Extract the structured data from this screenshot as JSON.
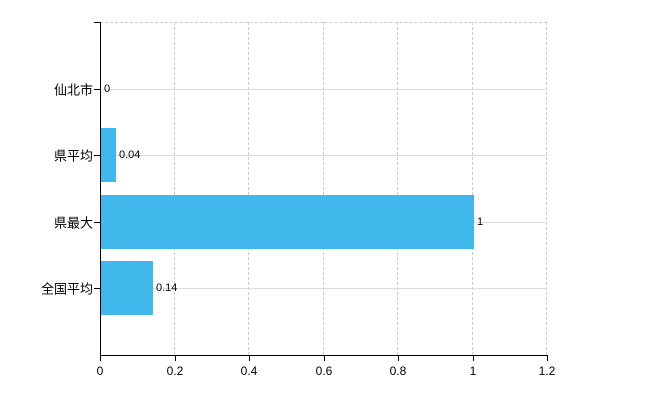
{
  "chart_data": {
    "type": "bar",
    "orientation": "horizontal",
    "title": "",
    "xlabel": "",
    "ylabel": "",
    "categories": [
      "仙北市",
      "県平均",
      "県最大",
      "全国平均"
    ],
    "values": [
      0,
      0.04,
      1,
      0.14
    ],
    "value_labels": [
      "0",
      "0.04",
      "1",
      "0.14"
    ],
    "xlim": [
      0,
      1.2
    ],
    "x_ticks": [
      0,
      0.2,
      0.4,
      0.6,
      0.8,
      1,
      1.2
    ],
    "x_tick_labels": [
      "0",
      "0.2",
      "0.4",
      "0.6",
      "0.8",
      "1",
      "1.2"
    ],
    "grid": true,
    "legend": "none",
    "colors": {
      "bar": "#41b8ec",
      "axis": "#000000",
      "gridline_vertical": "#cccccc",
      "gridline_horizontal": "#dddddd",
      "text": "#000000",
      "background": "#ffffff"
    }
  }
}
